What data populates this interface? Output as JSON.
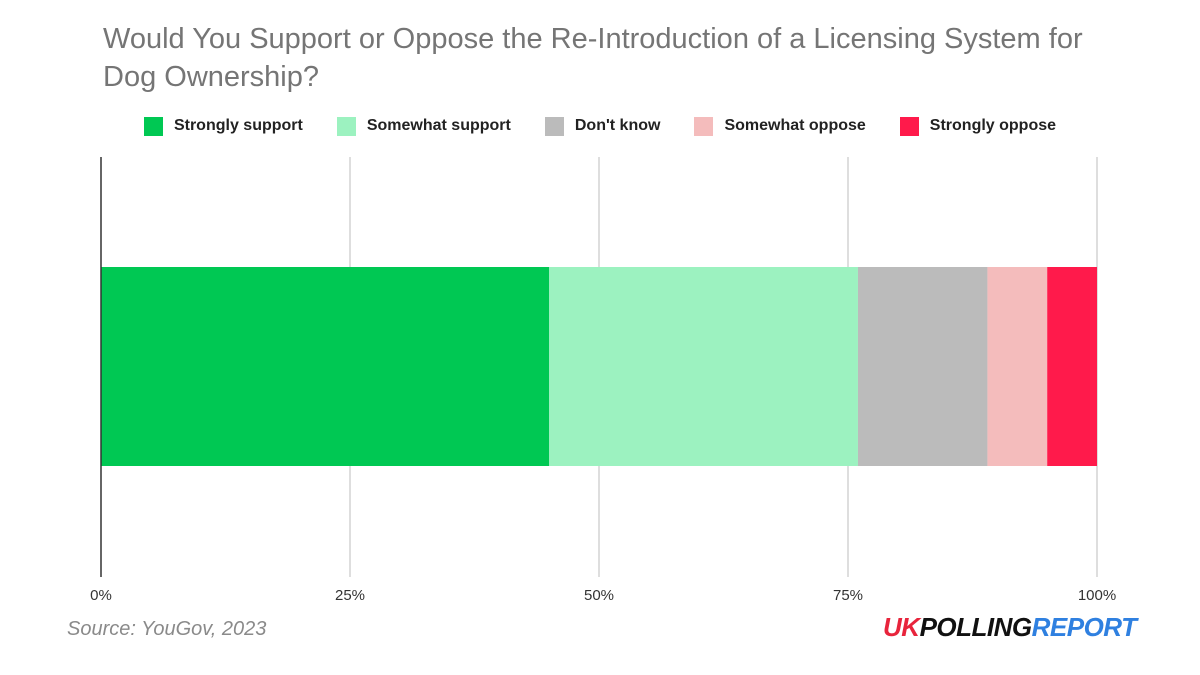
{
  "colors": {
    "title": "#757575",
    "axis": "#333333",
    "grid": "#cccccc",
    "source": "#8a8a8a",
    "brand_red": "#e8243c",
    "brand_dark": "#111111",
    "brand_blue": "#2f80e0"
  },
  "source": "Source: YouGov, 2023",
  "brand": {
    "part1": "UK",
    "part2": "POLLING",
    "part3": "REPORT"
  },
  "chart_data": {
    "type": "bar",
    "orientation": "horizontal",
    "stacked": true,
    "title": "Would You Support or Oppose the Re-Introduction of a Licensing System for Dog Ownership?",
    "xlim": [
      0,
      100
    ],
    "x_ticks": [
      0,
      25,
      50,
      75,
      100
    ],
    "x_tick_labels": [
      "0%",
      "25%",
      "50%",
      "75%",
      "100%"
    ],
    "grid": true,
    "legend": "top-center",
    "categories": [
      ""
    ],
    "series": [
      {
        "name": "Strongly support",
        "values": [
          45
        ],
        "color": "#00c853"
      },
      {
        "name": "Somewhat support",
        "values": [
          31
        ],
        "color": "#9cf2c0"
      },
      {
        "name": "Don't know",
        "values": [
          13
        ],
        "color": "#bbbbbb"
      },
      {
        "name": "Somewhat oppose",
        "values": [
          6
        ],
        "color": "#f4bcbc"
      },
      {
        "name": "Strongly oppose",
        "values": [
          5
        ],
        "color": "#ff1a4b"
      }
    ]
  }
}
